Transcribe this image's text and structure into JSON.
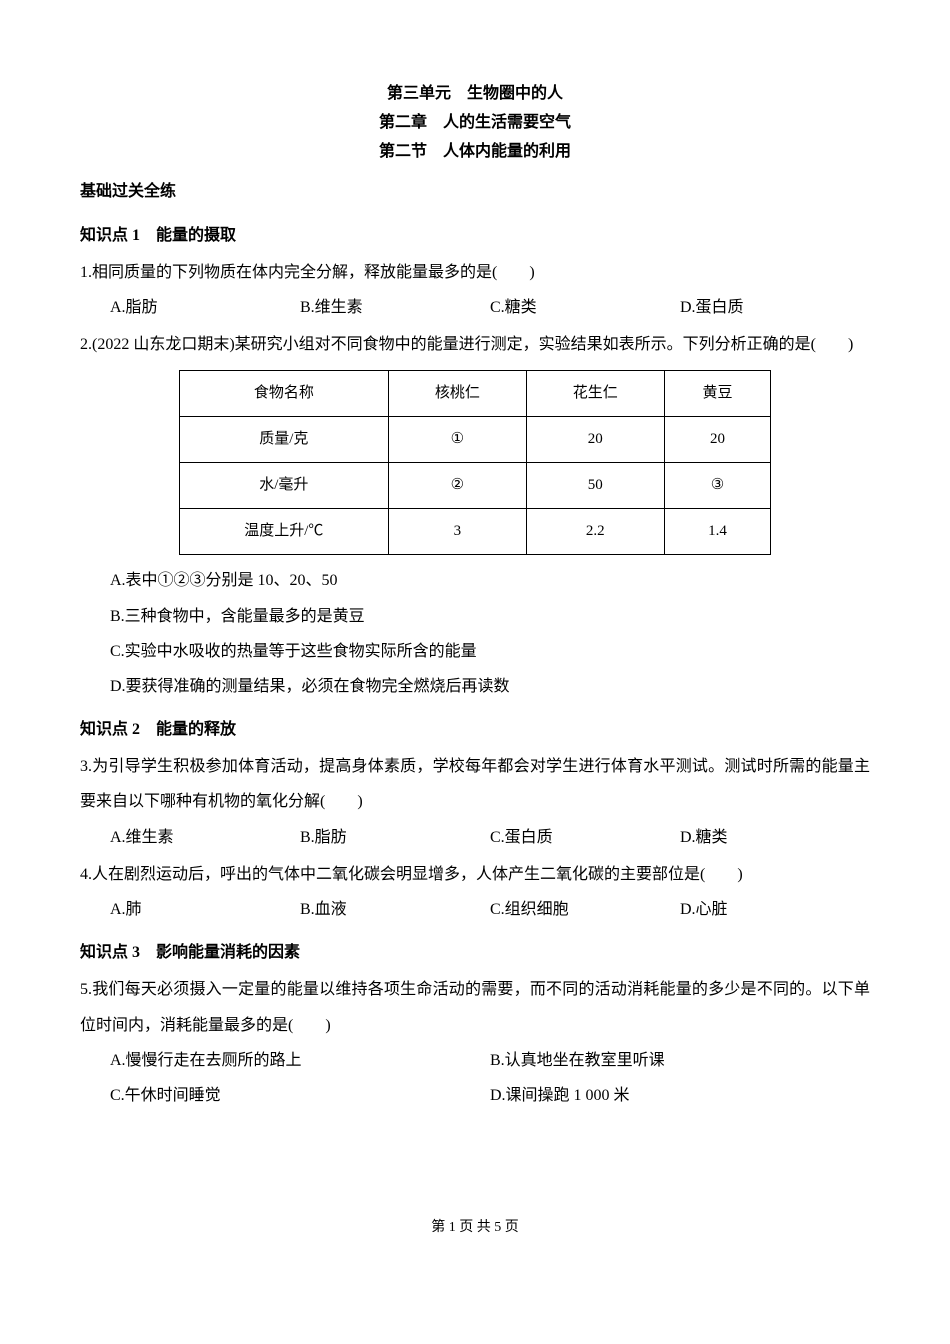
{
  "titles": {
    "unit": "第三单元　生物圈中的人",
    "chapter": "第二章　人的生活需要空气",
    "section": "第二节　人体内能量的利用"
  },
  "headings": {
    "base_practice": "基础过关全练",
    "kp1": "知识点 1　能量的摄取",
    "kp2": "知识点 2　能量的释放",
    "kp3": "知识点 3　影响能量消耗的因素"
  },
  "q1": {
    "text": "1.相同质量的下列物质在体内完全分解，释放能量最多的是(　　)",
    "a": "A.脂肪",
    "b": "B.维生素",
    "c": "C.糖类",
    "d": "D.蛋白质"
  },
  "q2": {
    "text": "2.(2022 山东龙口期末)某研究小组对不同食物中的能量进行测定，实验结果如表所示。下列分析正确的是(　　)",
    "table": {
      "headers": [
        "食物名称",
        "核桃仁",
        "花生仁",
        "黄豆"
      ],
      "rows": [
        [
          "质量/克",
          "①",
          "20",
          "20"
        ],
        [
          "水/毫升",
          "②",
          "50",
          "③"
        ],
        [
          "温度上升/℃",
          "3",
          "2.2",
          "1.4"
        ]
      ]
    },
    "a": "A.表中①②③分别是 10、20、50",
    "b": "B.三种食物中，含能量最多的是黄豆",
    "c": "C.实验中水吸收的热量等于这些食物实际所含的能量",
    "d": "D.要获得准确的测量结果，必须在食物完全燃烧后再读数"
  },
  "q3": {
    "text": "3.为引导学生积极参加体育活动，提高身体素质，学校每年都会对学生进行体育水平测试。测试时所需的能量主要来自以下哪种有机物的氧化分解(　　)",
    "a": "A.维生素",
    "b": "B.脂肪",
    "c": "C.蛋白质",
    "d": "D.糖类"
  },
  "q4": {
    "text": "4.人在剧烈运动后，呼出的气体中二氧化碳会明显增多，人体产生二氧化碳的主要部位是(　　)",
    "a": "A.肺",
    "b": "B.血液",
    "c": "C.组织细胞",
    "d": "D.心脏"
  },
  "q5": {
    "text": "5.我们每天必须摄入一定量的能量以维持各项生命活动的需要，而不同的活动消耗能量的多少是不同的。以下单位时间内，消耗能量最多的是(　　)",
    "a": "A.慢慢行走在去厕所的路上",
    "b": "B.认真地坐在教室里听课",
    "c": "C.午休时间睡觉",
    "d": "D.课间操跑 1 000 米"
  },
  "footer": "第 1 页 共 5 页"
}
